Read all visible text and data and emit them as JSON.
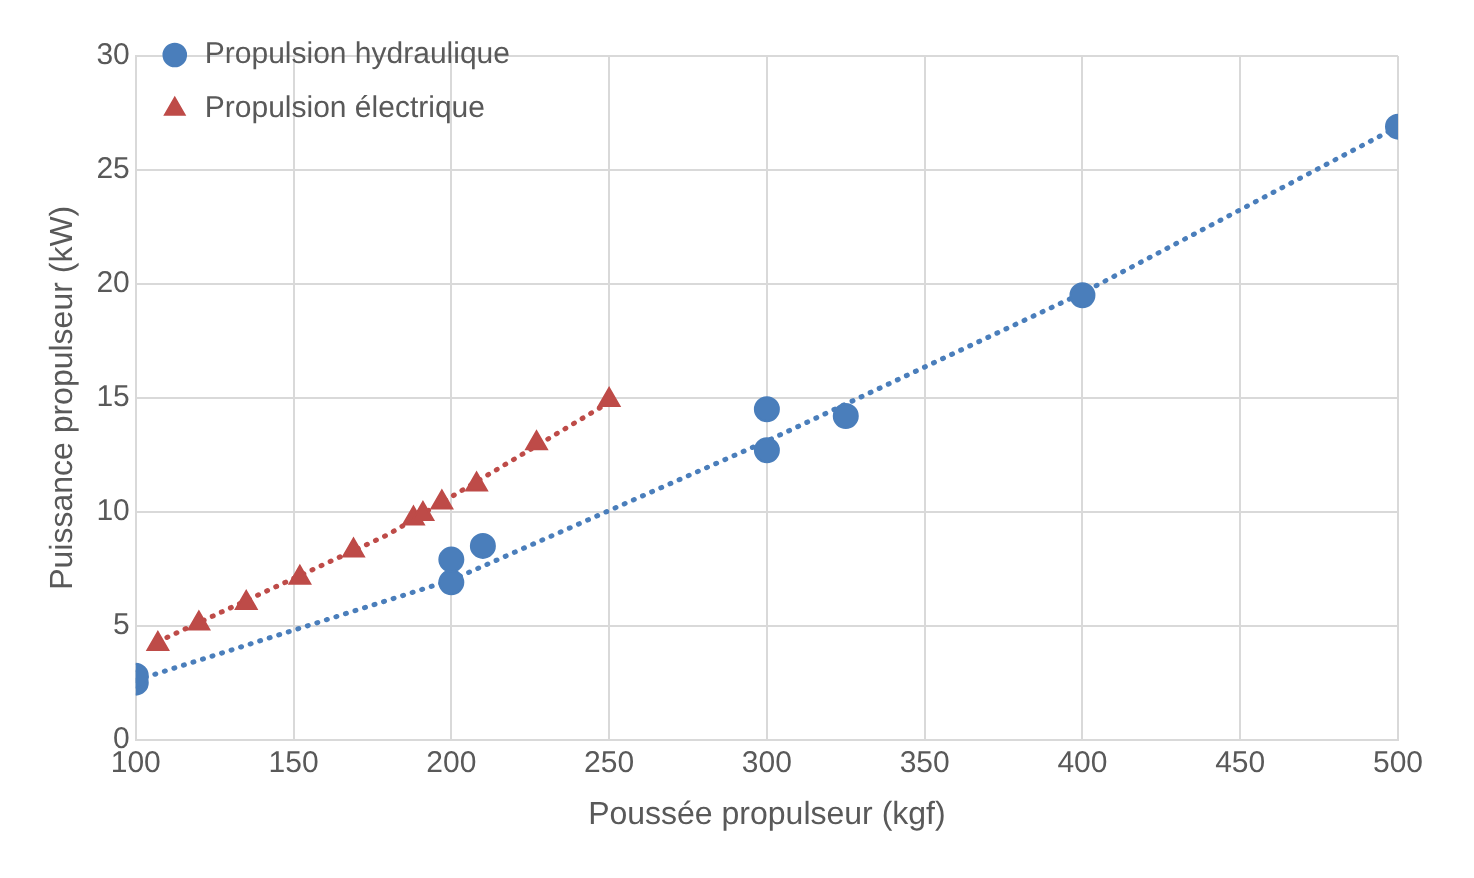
{
  "chart_data": {
    "type": "scatter",
    "xlabel": "Poussée propulseur (kgf)",
    "ylabel": "Puissance propulseur (kW)",
    "xlim": [
      100,
      500
    ],
    "xticks": [
      100,
      150,
      200,
      250,
      300,
      350,
      400,
      450,
      500
    ],
    "ylim": [
      0,
      30
    ],
    "yticks": [
      0,
      5,
      10,
      15,
      20,
      25,
      30
    ],
    "grid": true,
    "legend": "top left",
    "series": [
      {
        "name": "Propulsion hydraulique",
        "type": "scatter",
        "marker": "circle",
        "color": "#4a7ebb",
        "x": [
          100,
          100,
          200,
          200,
          210,
          300,
          300,
          325,
          400,
          500
        ],
        "values": [
          2.5,
          2.8,
          6.9,
          7.9,
          8.5,
          12.7,
          14.5,
          14.2,
          19.5,
          26.9
        ]
      },
      {
        "name": "Propulsion électrique",
        "type": "scatter",
        "marker": "triangle",
        "color": "#be4b48",
        "x": [
          107,
          120,
          135,
          152,
          169,
          188,
          191,
          197,
          208,
          227,
          250
        ],
        "values": [
          4.2,
          5.1,
          6.0,
          7.1,
          8.3,
          9.7,
          9.9,
          10.4,
          11.2,
          13.0,
          14.9
        ]
      },
      {
        "type": "line",
        "line_style": "dotted",
        "marker": "none",
        "color": "#4a7ebb",
        "x": [
          100,
          200,
          300,
          400,
          500
        ],
        "values": [
          2.6,
          7.0,
          13.1,
          19.6,
          26.9
        ]
      },
      {
        "type": "line",
        "line_style": "dotted",
        "marker": "none",
        "color": "#be4b48",
        "x": [
          107,
          180,
          250
        ],
        "values": [
          4.3,
          9.0,
          14.8
        ]
      }
    ]
  }
}
